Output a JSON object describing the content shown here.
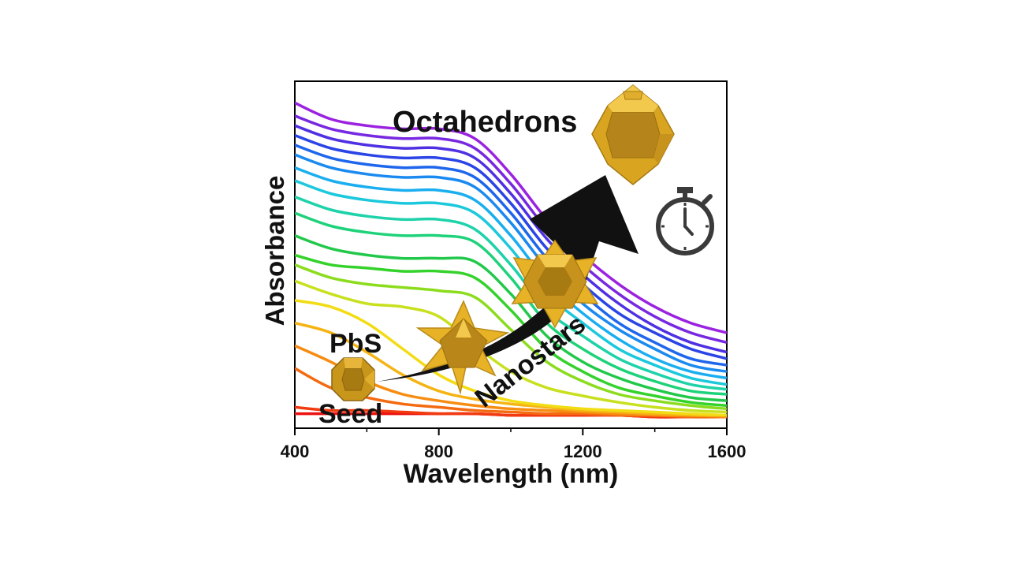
{
  "chart_data": {
    "type": "line",
    "title": "",
    "xlabel": "Wavelength (nm)",
    "ylabel": "Absorbance",
    "xlim": [
      400,
      1600
    ],
    "ylim": [
      0,
      1.05
    ],
    "xticks": [
      "400",
      "800",
      "1200",
      "1600"
    ],
    "yticks": [],
    "grid": false,
    "legend": "none",
    "annotations": {
      "seed": "Seed",
      "pbs": "PbS",
      "nanostars": "Nanostars",
      "octahedrons": "Octahedrons"
    },
    "x": [
      400,
      500,
      600,
      700,
      800,
      900,
      1000,
      1100,
      1200,
      1300,
      1400,
      1500,
      1600
    ],
    "series": [
      {
        "color": "#ee1010",
        "values": [
          0.04,
          0.04,
          0.04,
          0.04,
          0.04,
          0.04,
          0.035,
          0.035,
          0.035,
          0.035,
          0.03,
          0.03,
          0.03
        ]
      },
      {
        "color": "#f23a10",
        "values": [
          0.06,
          0.05,
          0.05,
          0.045,
          0.04,
          0.04,
          0.035,
          0.035,
          0.035,
          0.035,
          0.03,
          0.03,
          0.03
        ]
      },
      {
        "color": "#f46a10",
        "values": [
          0.18,
          0.12,
          0.09,
          0.07,
          0.06,
          0.05,
          0.045,
          0.04,
          0.04,
          0.035,
          0.035,
          0.03,
          0.03
        ]
      },
      {
        "color": "#f78c12",
        "values": [
          0.25,
          0.2,
          0.14,
          0.1,
          0.08,
          0.065,
          0.055,
          0.05,
          0.045,
          0.04,
          0.035,
          0.035,
          0.03
        ]
      },
      {
        "color": "#f5b414",
        "values": [
          0.32,
          0.29,
          0.23,
          0.16,
          0.11,
          0.085,
          0.07,
          0.06,
          0.05,
          0.045,
          0.04,
          0.035,
          0.035
        ]
      },
      {
        "color": "#f2dc14",
        "values": [
          0.39,
          0.37,
          0.32,
          0.24,
          0.16,
          0.11,
          0.08,
          0.065,
          0.055,
          0.05,
          0.045,
          0.04,
          0.035
        ]
      },
      {
        "color": "#c8e01e",
        "values": [
          0.45,
          0.41,
          0.38,
          0.37,
          0.34,
          0.25,
          0.17,
          0.12,
          0.095,
          0.075,
          0.06,
          0.05,
          0.045
        ]
      },
      {
        "color": "#8cdc1e",
        "values": [
          0.5,
          0.46,
          0.44,
          0.43,
          0.42,
          0.4,
          0.3,
          0.2,
          0.14,
          0.1,
          0.08,
          0.065,
          0.055
        ]
      },
      {
        "color": "#34d22a",
        "values": [
          0.53,
          0.5,
          0.49,
          0.48,
          0.48,
          0.46,
          0.36,
          0.24,
          0.17,
          0.12,
          0.095,
          0.075,
          0.065
        ]
      },
      {
        "color": "#22c84a",
        "values": [
          0.59,
          0.55,
          0.53,
          0.52,
          0.52,
          0.51,
          0.41,
          0.28,
          0.2,
          0.15,
          0.115,
          0.09,
          0.08
        ]
      },
      {
        "color": "#1ed27a",
        "values": [
          0.66,
          0.62,
          0.6,
          0.59,
          0.59,
          0.57,
          0.46,
          0.32,
          0.24,
          0.18,
          0.14,
          0.11,
          0.1
        ]
      },
      {
        "color": "#1ed2aa",
        "values": [
          0.71,
          0.67,
          0.65,
          0.64,
          0.64,
          0.61,
          0.5,
          0.36,
          0.28,
          0.21,
          0.165,
          0.13,
          0.115
        ]
      },
      {
        "color": "#1cc8dc",
        "values": [
          0.76,
          0.72,
          0.7,
          0.69,
          0.69,
          0.66,
          0.55,
          0.41,
          0.32,
          0.24,
          0.19,
          0.15,
          0.13
        ]
      },
      {
        "color": "#1aaef0",
        "values": [
          0.8,
          0.76,
          0.74,
          0.73,
          0.73,
          0.7,
          0.59,
          0.45,
          0.35,
          0.27,
          0.21,
          0.17,
          0.15
        ]
      },
      {
        "color": "#1a8af0",
        "values": [
          0.84,
          0.8,
          0.78,
          0.77,
          0.77,
          0.74,
          0.63,
          0.49,
          0.38,
          0.3,
          0.24,
          0.19,
          0.17
        ]
      },
      {
        "color": "#1e66ec",
        "values": [
          0.87,
          0.83,
          0.81,
          0.8,
          0.8,
          0.77,
          0.66,
          0.52,
          0.41,
          0.32,
          0.26,
          0.21,
          0.19
        ]
      },
      {
        "color": "#2a44e6",
        "values": [
          0.9,
          0.86,
          0.84,
          0.83,
          0.83,
          0.8,
          0.69,
          0.55,
          0.44,
          0.35,
          0.29,
          0.24,
          0.21
        ]
      },
      {
        "color": "#4f30e2",
        "values": [
          0.93,
          0.89,
          0.87,
          0.86,
          0.86,
          0.83,
          0.72,
          0.58,
          0.47,
          0.38,
          0.31,
          0.26,
          0.23
        ]
      },
      {
        "color": "#7828e0",
        "values": [
          0.96,
          0.92,
          0.9,
          0.89,
          0.89,
          0.86,
          0.75,
          0.61,
          0.5,
          0.41,
          0.34,
          0.29,
          0.26
        ]
      },
      {
        "color": "#9a22e0",
        "values": [
          1.0,
          0.95,
          0.93,
          0.92,
          0.92,
          0.89,
          0.78,
          0.64,
          0.53,
          0.44,
          0.37,
          0.32,
          0.29
        ]
      }
    ]
  },
  "colors": {
    "crystal": "#d4a017",
    "crystal_dark": "#9a7010",
    "crystal_light": "#f2c94c",
    "arrow": "#111111",
    "stopwatch": "#3a3a3a",
    "axis": "#000000"
  },
  "icons": {
    "stopwatch": "stopwatch-icon",
    "arrow": "growth-arrow-icon",
    "seed": "seed-crystal-icon",
    "nanostar_small": "nanostar-small-icon",
    "nanostar_large": "nanostar-large-icon",
    "octahedron": "octahedron-crystal-icon"
  }
}
